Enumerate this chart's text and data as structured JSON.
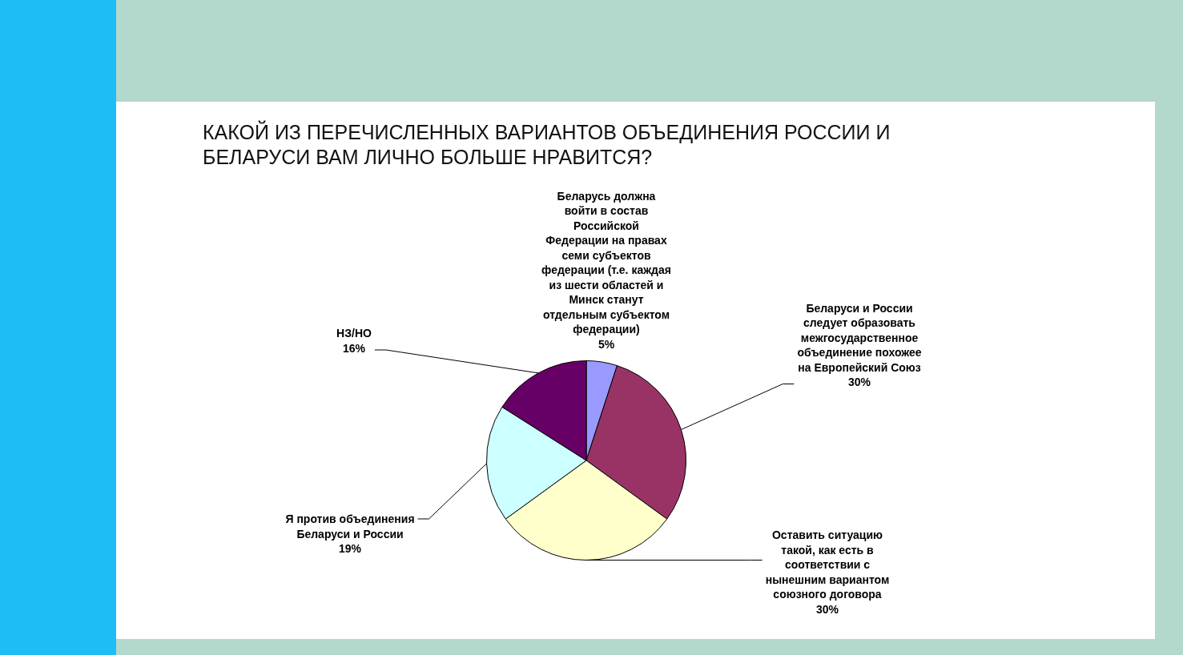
{
  "chart_data": {
    "type": "pie",
    "title": "КАКОЙ ИЗ ПЕРЕЧИСЛЕННЫХ ВАРИАНТОВ ОБЪЕДИНЕНИЯ РОССИИ И БЕЛАРУСИ ВАМ ЛИЧНО БОЛЬШЕ НРАВИТСЯ?",
    "categories": [
      "Беларусь должна войти в состав Российской Федерации на правах семи субъектов федерации (т.е. каждая из шести областей и Минск станут отдельным субъектом федерации)",
      "Беларуси и России следует образовать межгосударственное объединение похожее на Европейский Союз",
      "Оставить ситуацию такой, как есть в соответствии с нынешним вариантом союзного договора",
      "Я против объединения Беларуси и России",
      "НЗ/НО"
    ],
    "values": [
      5,
      30,
      30,
      19,
      16
    ],
    "colors": [
      "#9999ff",
      "#993366",
      "#ffffcc",
      "#ccffff",
      "#660066"
    ],
    "value_labels": [
      "5%",
      "30%",
      "30%",
      "19%",
      "16%"
    ]
  }
}
